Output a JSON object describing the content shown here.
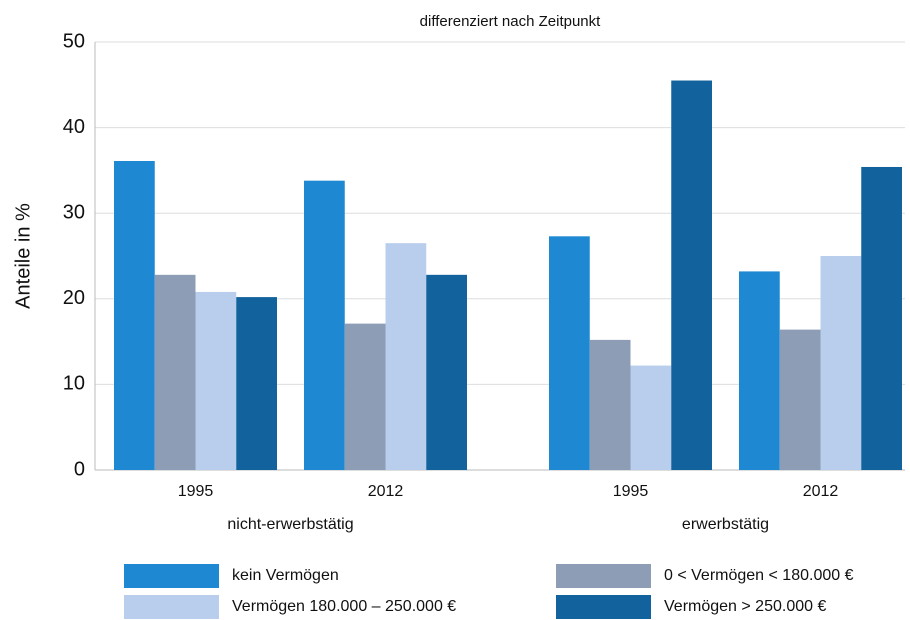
{
  "chart_data": {
    "type": "bar",
    "title": "differenziert nach Zeitpunkt",
    "y_label": "Anteile in %",
    "categories": [
      "1995",
      "2012",
      "1995",
      "2012"
    ],
    "groups": [
      "nicht-erwerbstätig",
      "erwerbstätig"
    ],
    "series": [
      {
        "name": "kein Vermögen",
        "color": "#1f88d2",
        "values": [
          36.1,
          33.8,
          27.3,
          23.2
        ]
      },
      {
        "name": "0 < Vermögen < 180.000 €",
        "color": "#8c9db5",
        "values": [
          22.8,
          17.1,
          15.2,
          16.4
        ]
      },
      {
        "name": "Vermögen 180.000 – 250.000 €",
        "color": "#b9cdec",
        "values": [
          20.8,
          26.5,
          12.2,
          25.0
        ]
      },
      {
        "name": "Vermögen > 250.000 €",
        "color": "#12629e",
        "values": [
          20.2,
          22.8,
          45.5,
          35.4
        ]
      }
    ],
    "ylim": [
      0,
      50
    ],
    "yticks": [
      0,
      10,
      20,
      30,
      40,
      50
    ],
    "grid": true
  }
}
